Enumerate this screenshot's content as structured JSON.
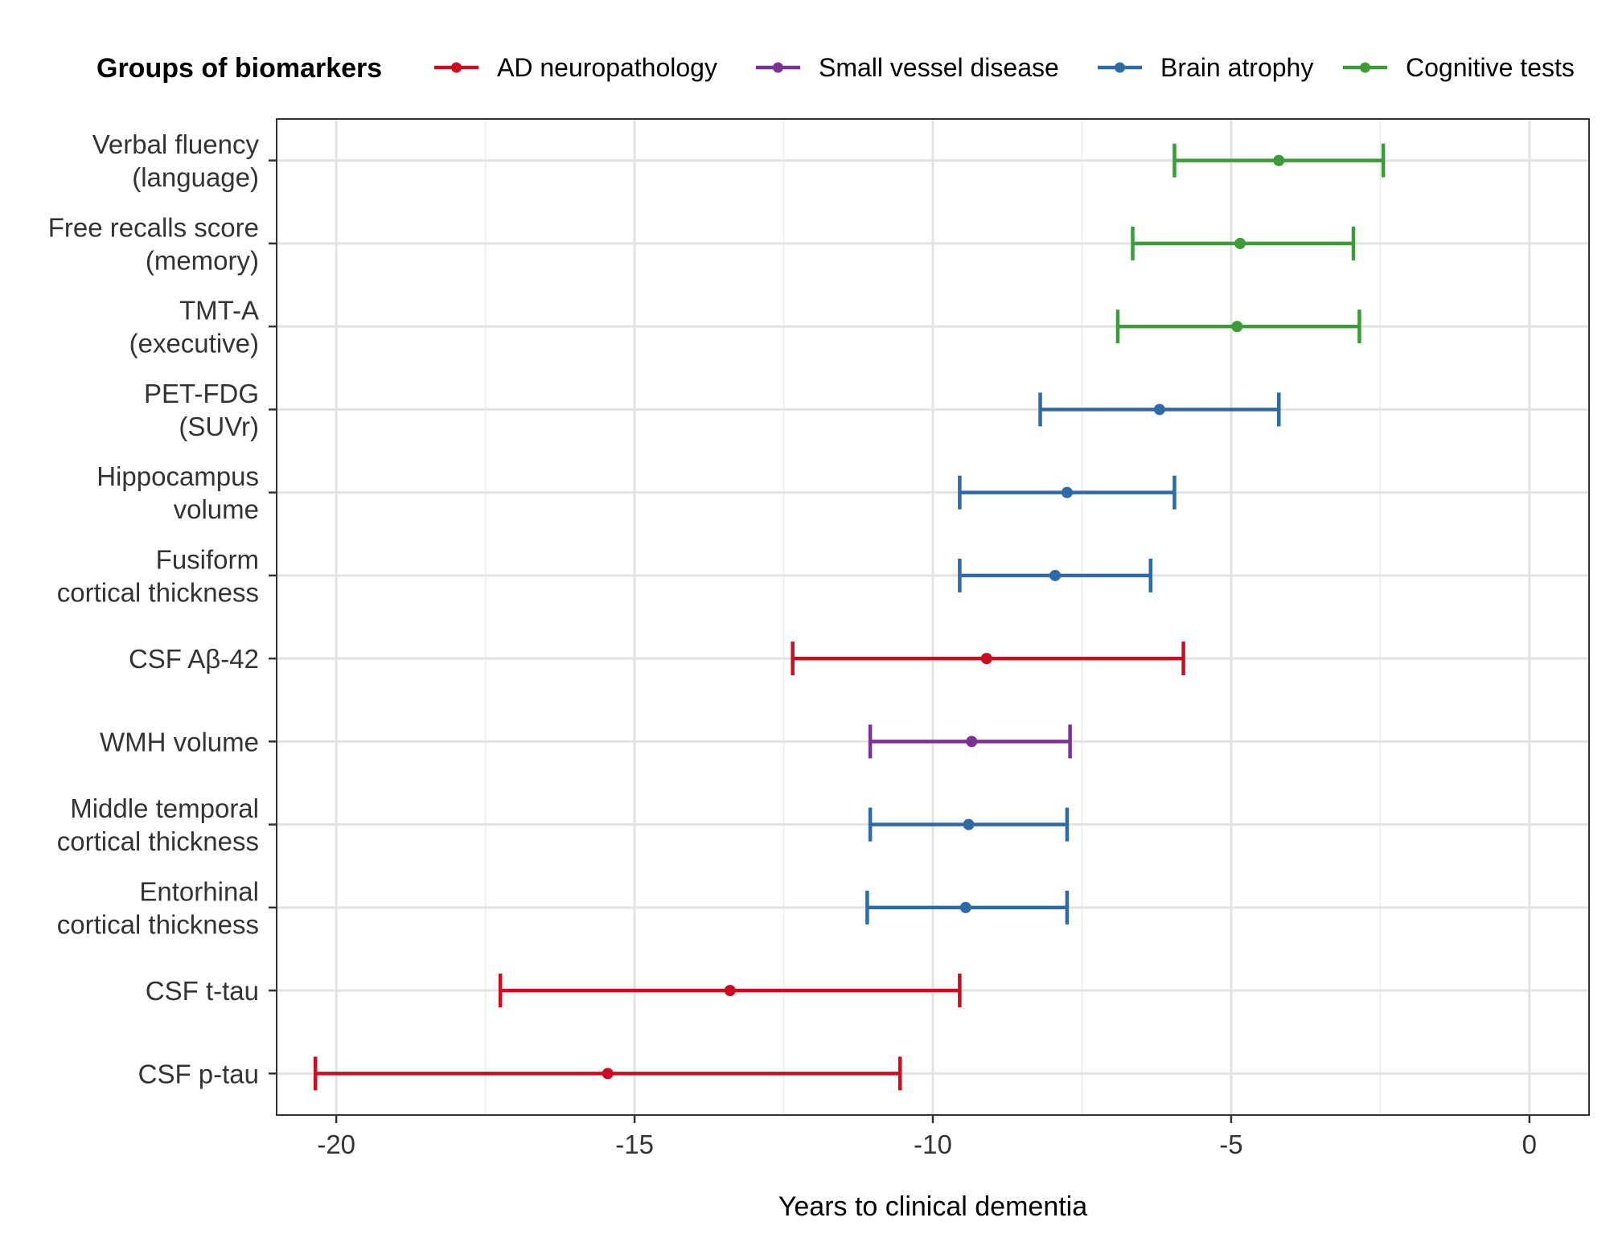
{
  "chart_data": {
    "type": "errorbar",
    "title": "",
    "xlabel": "Years to clinical dementia",
    "ylabel": "",
    "xlim": [
      -21,
      1
    ],
    "xticks": [
      -20,
      -15,
      -10,
      -5,
      0
    ],
    "grid": true,
    "legend": {
      "title": "Groups of biomarkers",
      "position": "top",
      "entries": [
        {
          "key": "ad",
          "label": "AD neuropathology",
          "color": "#CC0C20"
        },
        {
          "key": "svd",
          "label": "Small vessel disease",
          "color": "#7B3294"
        },
        {
          "key": "atrophy",
          "label": "Brain atrophy",
          "color": "#2E6AA8"
        },
        {
          "key": "cog",
          "label": "Cognitive tests",
          "color": "#3E9B3A"
        }
      ]
    },
    "series": [
      {
        "name": "Verbal fluency (language)",
        "label_lines": [
          "Verbal fluency",
          "(language)"
        ],
        "group": "cog",
        "estimate": -4.2,
        "lower": -5.95,
        "upper": -2.45
      },
      {
        "name": "Free recalls score (memory)",
        "label_lines": [
          "Free recalls score",
          "(memory)"
        ],
        "group": "cog",
        "estimate": -4.85,
        "lower": -6.65,
        "upper": -2.95
      },
      {
        "name": "TMT-A (executive)",
        "label_lines": [
          "TMT-A",
          "(executive)"
        ],
        "group": "cog",
        "estimate": -4.9,
        "lower": -6.9,
        "upper": -2.85
      },
      {
        "name": "PET-FDG (SUVr)",
        "label_lines": [
          "PET-FDG",
          "(SUVr)"
        ],
        "group": "atrophy",
        "estimate": -6.2,
        "lower": -8.2,
        "upper": -4.2
      },
      {
        "name": "Hippocampus volume",
        "label_lines": [
          "Hippocampus",
          "volume"
        ],
        "group": "atrophy",
        "estimate": -7.75,
        "lower": -9.55,
        "upper": -5.95
      },
      {
        "name": "Fusiform cortical thickness",
        "label_lines": [
          "Fusiform",
          "cortical thickness"
        ],
        "group": "atrophy",
        "estimate": -7.95,
        "lower": -9.55,
        "upper": -6.35
      },
      {
        "name": "CSF Aβ-42",
        "label_lines": [
          "CSF Aβ-42"
        ],
        "group": "ad",
        "estimate": -9.1,
        "lower": -12.35,
        "upper": -5.8
      },
      {
        "name": "WMH volume",
        "label_lines": [
          "WMH volume"
        ],
        "group": "svd",
        "estimate": -9.35,
        "lower": -11.05,
        "upper": -7.7
      },
      {
        "name": "Middle temporal cortical thickness",
        "label_lines": [
          "Middle temporal",
          "cortical thickness"
        ],
        "group": "atrophy",
        "estimate": -9.4,
        "lower": -11.05,
        "upper": -7.75
      },
      {
        "name": "Entorhinal cortical thickness",
        "label_lines": [
          "Entorhinal",
          "cortical thickness"
        ],
        "group": "atrophy",
        "estimate": -9.45,
        "lower": -11.1,
        "upper": -7.75
      },
      {
        "name": "CSF t-tau",
        "label_lines": [
          "CSF t-tau"
        ],
        "group": "ad",
        "estimate": -13.4,
        "lower": -17.25,
        "upper": -9.55
      },
      {
        "name": "CSF p-tau",
        "label_lines": [
          "CSF p-tau"
        ],
        "group": "ad",
        "estimate": -15.45,
        "lower": -20.35,
        "upper": -10.55
      }
    ]
  }
}
